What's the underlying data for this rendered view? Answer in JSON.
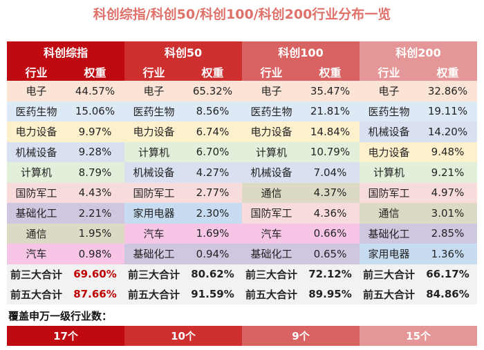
{
  "title": "科创综指/科创50/科创100/科创200行业分布一览",
  "col_header": {
    "industry": "行业",
    "weight": "权重"
  },
  "group_colors": [
    "#c00a12",
    "#ce2f2f",
    "#d96262",
    "#e59696"
  ],
  "industry_colors": {
    "电子": "#fbe3d6",
    "医药生物": "#dde9f5",
    "电力设备": "#fdf0cc",
    "机械设备": "#d9e1f1",
    "计算机": "#e2efda",
    "国防军工": "#f8dcdc",
    "基础化工": "#cfc6e0",
    "通信": "#dcdac4",
    "汽车": "#f7c6e6",
    "家用电器": "#c8dcf1"
  },
  "indices": [
    {
      "name": "科创综指",
      "rows": [
        [
          "电子",
          "44.57%"
        ],
        [
          "医药生物",
          "15.06%"
        ],
        [
          "电力设备",
          "9.97%"
        ],
        [
          "机械设备",
          "9.28%"
        ],
        [
          "计算机",
          "8.79%"
        ],
        [
          "国防军工",
          "4.43%"
        ],
        [
          "基础化工",
          "2.21%"
        ],
        [
          "通信",
          "1.95%"
        ],
        [
          "汽车",
          "0.98%"
        ]
      ],
      "top3": "69.60%",
      "top5": "87.66%",
      "coverage": "17个"
    },
    {
      "name": "科创50",
      "rows": [
        [
          "电子",
          "65.32%"
        ],
        [
          "医药生物",
          "8.56%"
        ],
        [
          "电力设备",
          "6.74%"
        ],
        [
          "计算机",
          "6.70%"
        ],
        [
          "机械设备",
          "4.27%"
        ],
        [
          "国防军工",
          "2.77%"
        ],
        [
          "家用电器",
          "2.30%"
        ],
        [
          "汽车",
          "1.69%"
        ],
        [
          "基础化工",
          "0.94%"
        ]
      ],
      "top3": "80.62%",
      "top5": "91.59%",
      "coverage": "10个"
    },
    {
      "name": "科创100",
      "rows": [
        [
          "电子",
          "35.47%"
        ],
        [
          "医药生物",
          "21.81%"
        ],
        [
          "电力设备",
          "14.84%"
        ],
        [
          "计算机",
          "10.79%"
        ],
        [
          "机械设备",
          "7.04%"
        ],
        [
          "通信",
          "4.37%"
        ],
        [
          "国防军工",
          "4.36%"
        ],
        [
          "汽车",
          "0.66%"
        ],
        [
          "基础化工",
          "0.65%"
        ]
      ],
      "top3": "72.12%",
      "top5": "89.95%",
      "coverage": "9个"
    },
    {
      "name": "科创200",
      "rows": [
        [
          "电子",
          "32.86%"
        ],
        [
          "医药生物",
          "19.11%"
        ],
        [
          "机械设备",
          "14.20%"
        ],
        [
          "电力设备",
          "9.48%"
        ],
        [
          "计算机",
          "9.21%"
        ],
        [
          "国防军工",
          "4.97%"
        ],
        [
          "通信",
          "3.01%"
        ],
        [
          "基础化工",
          "2.85%"
        ],
        [
          "家用电器",
          "1.36%"
        ]
      ],
      "top3": "66.17%",
      "top5": "84.86%",
      "coverage": "15个"
    }
  ],
  "top3_label": "前三大合计",
  "top5_label": "前五大合计",
  "coverage_label": "覆盖申万一级行业数："
}
